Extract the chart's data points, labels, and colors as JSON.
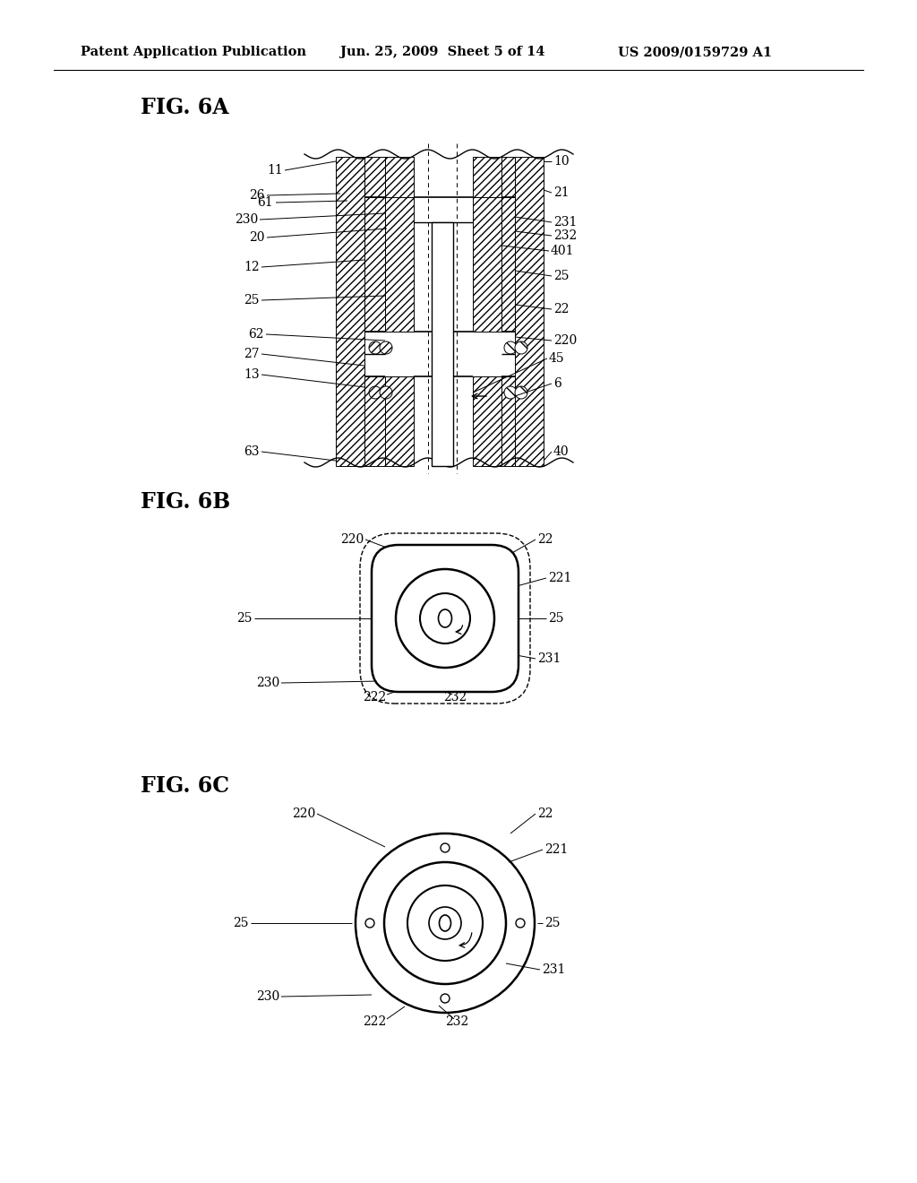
{
  "header_left": "Patent Application Publication",
  "header_mid": "Jun. 25, 2009  Sheet 5 of 14",
  "header_right": "US 2009/0159729 A1",
  "fig6a_label": "FIG. 6A",
  "fig6b_label": "FIG. 6B",
  "fig6c_label": "FIG. 6C",
  "bg_color": "#ffffff",
  "line_color": "#000000"
}
